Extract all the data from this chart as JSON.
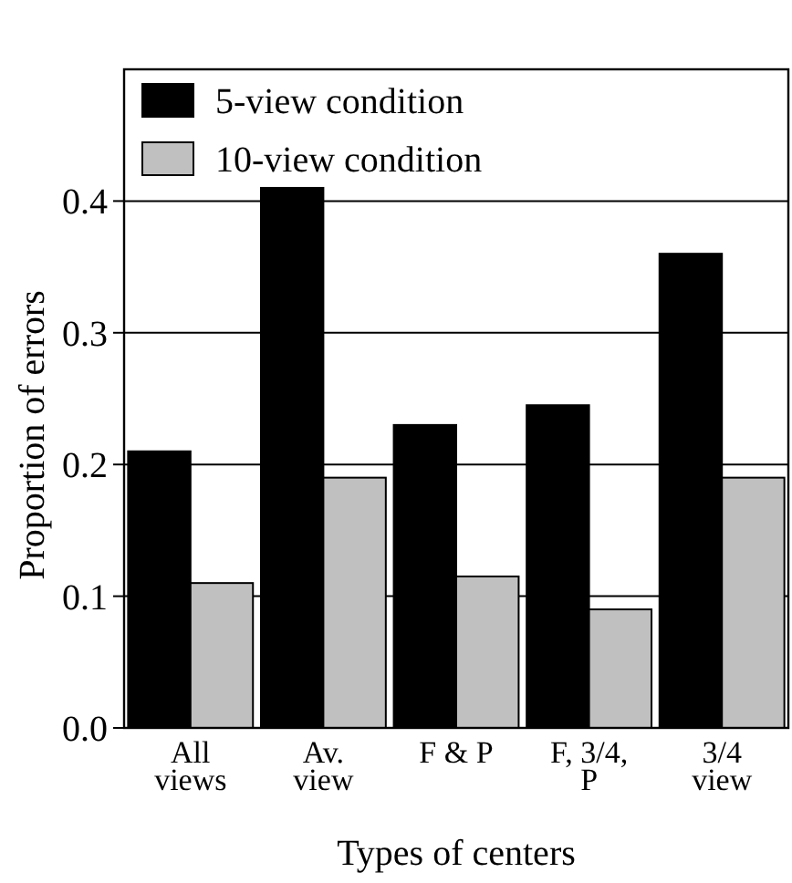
{
  "chart_data": {
    "type": "bar",
    "xlabel": "Types of centers",
    "ylabel": "Proportion of errors",
    "categories": [
      "All\nviews",
      "Av.\nview",
      "F & P",
      "F, 3/4,\nP",
      "3/4\nview"
    ],
    "series": [
      {
        "name": "5-view condition",
        "color": "#000000",
        "values": [
          0.21,
          0.41,
          0.23,
          0.245,
          0.36
        ]
      },
      {
        "name": "10-view condition",
        "color": "#c0c0c0",
        "values": [
          0.11,
          0.19,
          0.115,
          0.09,
          0.19
        ]
      }
    ],
    "ylim": [
      0,
      0.5
    ],
    "yticks": [
      {
        "value": 0,
        "label": "0.0"
      },
      0.1,
      0.2,
      0.3,
      0.4
    ],
    "grid": "y",
    "legend": "top left"
  }
}
